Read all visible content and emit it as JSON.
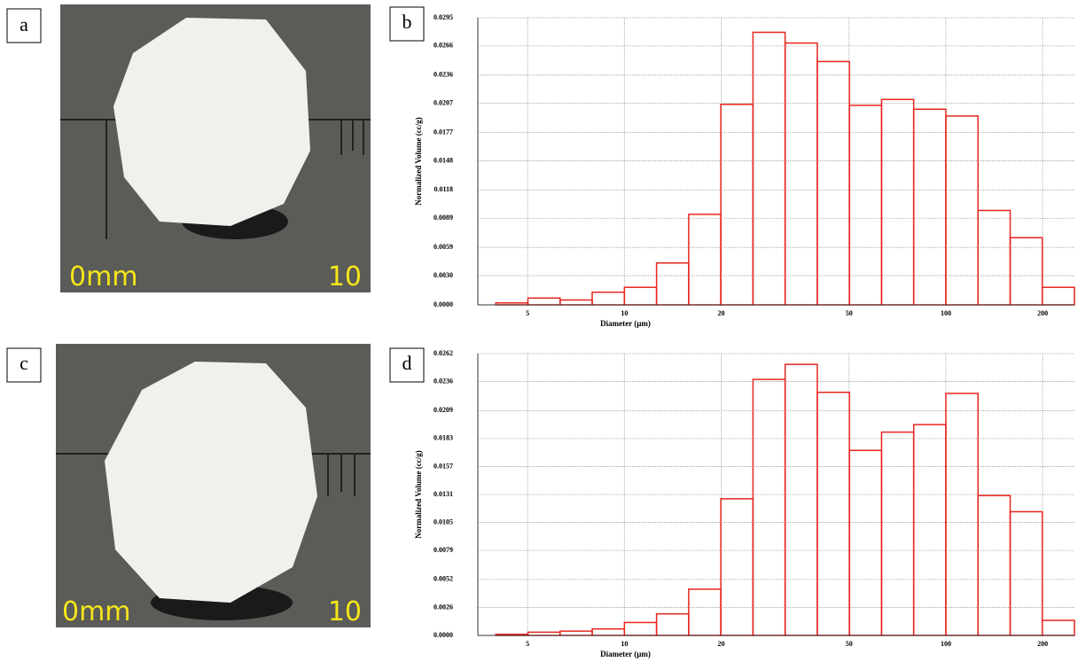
{
  "photos": [
    {
      "panel": "a",
      "scale_start": "0mm",
      "scale_end": "10"
    },
    {
      "panel": "c",
      "scale_start": "0mm",
      "scale_end": "10"
    }
  ],
  "chart_data": [
    {
      "type": "histogram",
      "panel": "b",
      "x_label": "Diameter (µm)",
      "y_label": "Normalized Volume (cc/g)",
      "log_x": true,
      "grid": true,
      "color": "#e8261f",
      "bins": [
        3.98,
        5.01,
        6.31,
        7.94,
        10,
        12.59,
        15.85,
        19.95,
        25.12,
        31.62,
        39.81,
        50.12,
        63.1,
        79.43,
        100,
        125.9,
        158.5,
        199.5,
        251.2
      ],
      "values": [
        0.0002,
        0.0007,
        0.0005,
        0.0013,
        0.0018,
        0.0043,
        0.0093,
        0.0206,
        0.028,
        0.0269,
        0.025,
        0.0205,
        0.0211,
        0.0201,
        0.0194,
        0.0097,
        0.0069,
        0.0018
      ],
      "xlim": [
        3.5,
        251.2
      ],
      "xticks": [
        5,
        10,
        20,
        50,
        100,
        200
      ],
      "ylim": [
        0,
        0.0295
      ],
      "yticks": [
        {
          "value": 0,
          "label": "0.0000"
        },
        {
          "value": 0.003,
          "label": "0.0030"
        },
        0.0059,
        0.0089,
        0.0118,
        0.0148,
        0.0177,
        0.0207,
        0.0236,
        0.0266,
        0.0295
      ]
    },
    {
      "type": "histogram",
      "panel": "d",
      "x_label": "Diameter (µm)",
      "y_label": "Normalized Volume (cc/g)",
      "log_x": true,
      "grid": true,
      "color": "#e8261f",
      "bins": [
        3.98,
        5.01,
        6.31,
        7.94,
        10,
        12.59,
        15.85,
        19.95,
        25.12,
        31.62,
        39.81,
        50.12,
        63.1,
        79.43,
        100,
        125.9,
        158.5,
        199.5,
        251.2
      ],
      "values": [
        0.0001,
        0.0003,
        0.0004,
        0.0006,
        0.0012,
        0.002,
        0.0043,
        0.0127,
        0.0238,
        0.0252,
        0.0226,
        0.0172,
        0.0189,
        0.0196,
        0.0225,
        0.013,
        0.0115,
        0.0014
      ],
      "xlim": [
        3.5,
        251.2
      ],
      "xticks": [
        5,
        10,
        20,
        50,
        100,
        200
      ],
      "ylim": [
        0,
        0.0262
      ],
      "yticks": [
        {
          "value": 0,
          "label": "0.0000"
        },
        0.0026,
        0.0052,
        0.0079,
        0.0105,
        0.0131,
        0.0157,
        0.0183,
        0.0209,
        0.0236,
        0.0262
      ]
    }
  ]
}
